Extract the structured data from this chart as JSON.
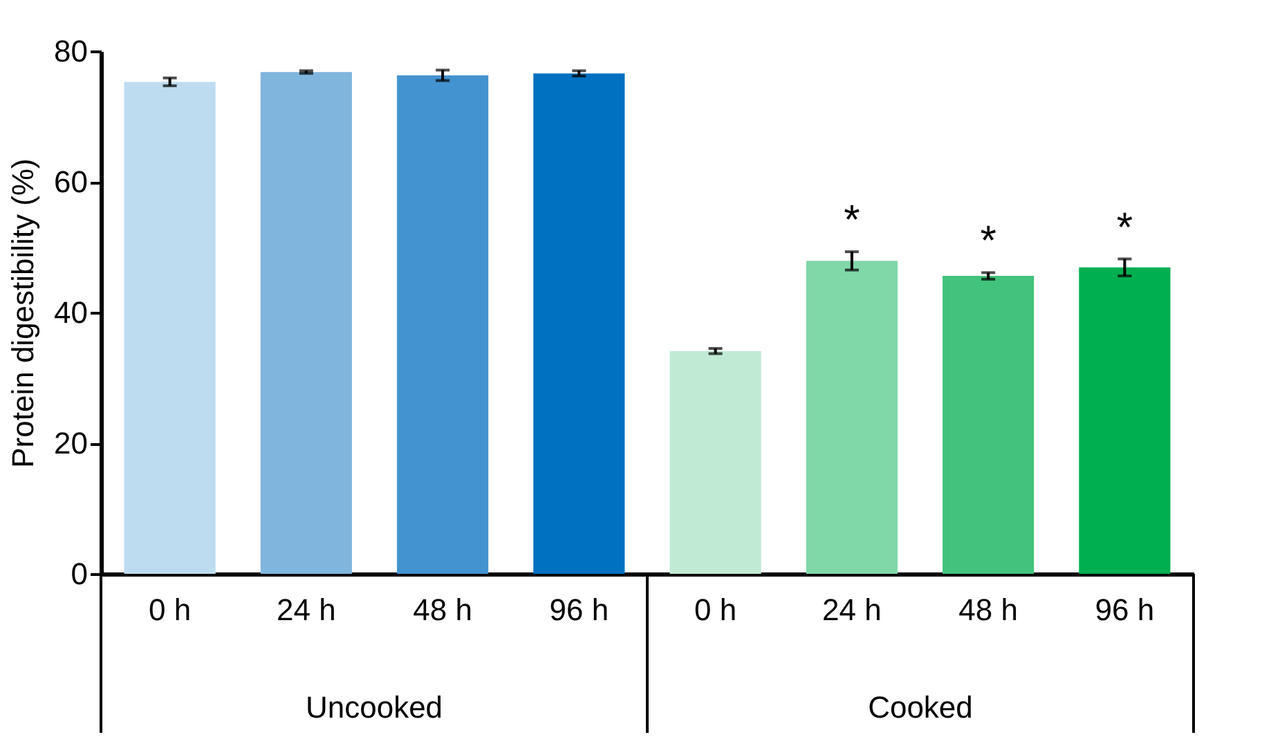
{
  "chart_data": {
    "type": "bar",
    "ylabel": "Protein digestibility (%)",
    "categories": [
      "0 h",
      "24 h",
      "48 h",
      "96 h",
      "0 h",
      "24 h",
      "48 h",
      "96 h"
    ],
    "values": [
      75.3,
      76.8,
      76.3,
      76.6,
      34.1,
      47.9,
      45.6,
      46.9
    ],
    "errors": [
      0.6,
      0.2,
      0.8,
      0.4,
      0.4,
      1.4,
      0.5,
      1.3
    ],
    "colors": [
      "#bddcf0",
      "#80b5dd",
      "#4393d0",
      "#0070c0",
      "#c0ead4",
      "#80d7a8",
      "#42c37c",
      "#00af50"
    ],
    "value_labels": [
      null,
      null,
      null,
      null,
      null,
      "*",
      "*",
      "*"
    ],
    "annotations": [
      "Uncooked",
      "Cooked"
    ],
    "ylim": [
      0,
      80
    ],
    "yticks": [
      0,
      20,
      40,
      60,
      80
    ],
    "grid": false
  }
}
